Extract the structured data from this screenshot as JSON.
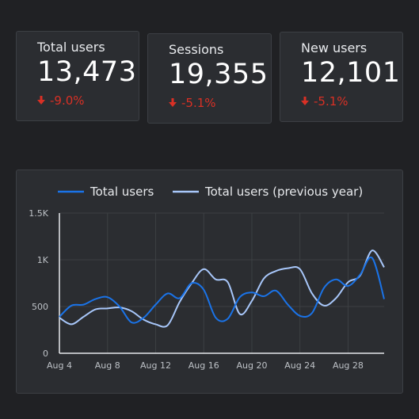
{
  "scorecards": [
    {
      "label": "Total users",
      "value": "13,473",
      "delta": "-9.0%"
    },
    {
      "label": "Sessions",
      "value": "19,355",
      "delta": "-5.1%"
    },
    {
      "label": "New users",
      "value": "12,101",
      "delta": "-5.1%"
    }
  ],
  "colors": {
    "current": "#1a73e8",
    "previous": "#a8c7fa",
    "negative": "#d93025"
  },
  "chart_data": {
    "type": "line",
    "legend": "top",
    "grid": true,
    "x_ticks": [
      "Aug 4",
      "Aug 8",
      "Aug 12",
      "Aug 16",
      "Aug 20",
      "Aug 24",
      "Aug 28"
    ],
    "y_ticks": [
      "0",
      "500",
      "1K",
      "1.5K"
    ],
    "ylim": [
      0,
      1500
    ],
    "x": [
      4,
      5,
      6,
      7,
      8,
      9,
      10,
      11,
      12,
      13,
      14,
      15,
      16,
      17,
      18,
      19,
      20,
      21,
      22,
      23,
      24,
      25,
      26,
      27,
      28,
      29,
      30,
      31
    ],
    "series": [
      {
        "name": "Total users",
        "values": [
          390,
          510,
          520,
          580,
          600,
          500,
          330,
          380,
          520,
          640,
          590,
          750,
          680,
          380,
          370,
          600,
          650,
          610,
          670,
          520,
          400,
          430,
          700,
          790,
          720,
          840,
          1020,
          580
        ]
      },
      {
        "name": "Total users (previous year)",
        "values": [
          380,
          310,
          390,
          470,
          480,
          490,
          450,
          360,
          310,
          300,
          550,
          750,
          900,
          790,
          760,
          420,
          560,
          800,
          880,
          910,
          900,
          640,
          510,
          590,
          760,
          830,
          1100,
          920
        ]
      }
    ]
  }
}
